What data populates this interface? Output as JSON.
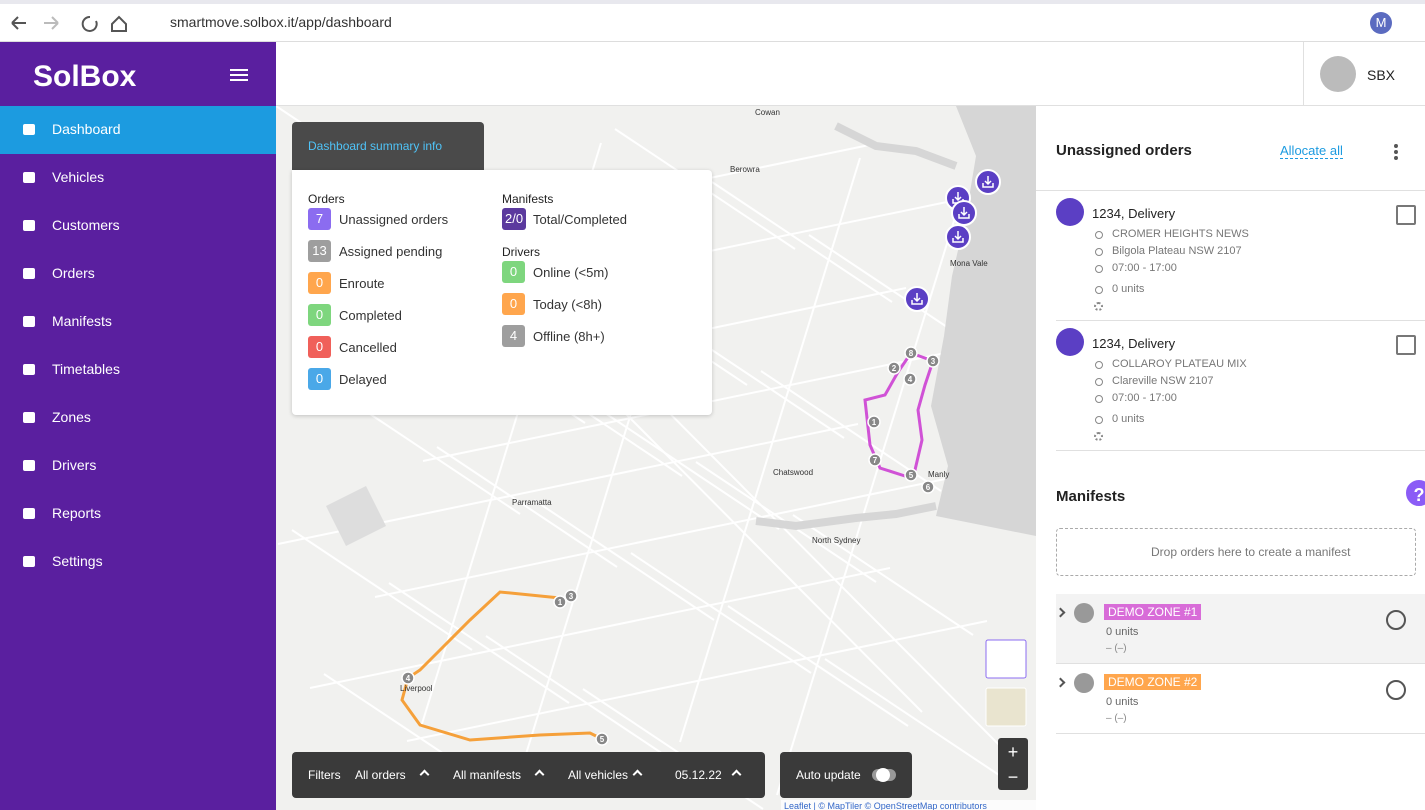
{
  "browser": {
    "url": "smartmove.solbox.it/app/dashboard",
    "profile": "M"
  },
  "sidebar": {
    "logo": "SolBox",
    "nav": [
      "Dashboard",
      "Vehicles",
      "Customers",
      "Orders",
      "Manifests",
      "Timetables",
      "Zones",
      "Drivers",
      "Reports",
      "Settings"
    ]
  },
  "header": {
    "user": "SBX"
  },
  "summary": {
    "toggle": "Dashboard summary info",
    "orders": {
      "heading": "Orders",
      "items": [
        {
          "count": 7,
          "label": "Unassigned orders"
        },
        {
          "count": 13,
          "label": "Assigned pending"
        },
        {
          "count": 0,
          "label": "Enroute"
        },
        {
          "count": 0,
          "label": "Completed"
        },
        {
          "count": 0,
          "label": "Cancelled"
        },
        {
          "count": 0,
          "label": "Delayed"
        }
      ]
    },
    "manifests": {
      "heading": "Manifests",
      "items": [
        {
          "count": "2/0",
          "label": "Total/Completed"
        }
      ]
    },
    "drivers": {
      "heading": "Drivers",
      "items": [
        {
          "count": 0,
          "label": "Online (<5m)"
        },
        {
          "count": 0,
          "label": "Today (<8h)"
        },
        {
          "count": 4,
          "label": "Offline (8h+)"
        }
      ]
    }
  },
  "map": {
    "labels": [
      "Cowan",
      "Berowra",
      "Mona Vale",
      "Chatswood",
      "Parramatta",
      "North Sydney",
      "Manly",
      "Liverpool"
    ],
    "pink_stops": [
      8,
      3,
      2,
      4,
      1,
      7,
      5,
      6
    ],
    "orange_stops": [
      1,
      3,
      4,
      5
    ],
    "zoom_in": "+",
    "zoom_out": "−",
    "attribution": "Leaflet | © MapTiler © OpenStreetMap contributors"
  },
  "filters": {
    "label": "Filters",
    "options": [
      "All orders",
      "All manifests",
      "All vehicles",
      "05.12.22"
    ],
    "auto_update": "Auto update"
  },
  "unassigned": {
    "title": "Unassigned orders",
    "action": "Allocate all",
    "orders": [
      {
        "title": "1234, Delivery",
        "customer": "CROMER HEIGHTS NEWS",
        "address": "Bilgola Plateau NSW 2107",
        "time": "07:00 - 17:00",
        "units": "0 units"
      },
      {
        "title": "1234, Delivery",
        "customer": "COLLAROY PLATEAU MIX",
        "address": "Clareville NSW 2107",
        "time": "07:00 - 17:00",
        "units": "0 units"
      }
    ]
  },
  "manifests": {
    "title": "Manifests",
    "drop": "Drop orders here to create a manifest",
    "items": [
      {
        "zone": "DEMO ZONE #1",
        "units": "0 units",
        "status": "– (–)"
      },
      {
        "zone": "DEMO ZONE #2",
        "units": "0 units",
        "status": "– (–)"
      }
    ]
  },
  "help": "?"
}
